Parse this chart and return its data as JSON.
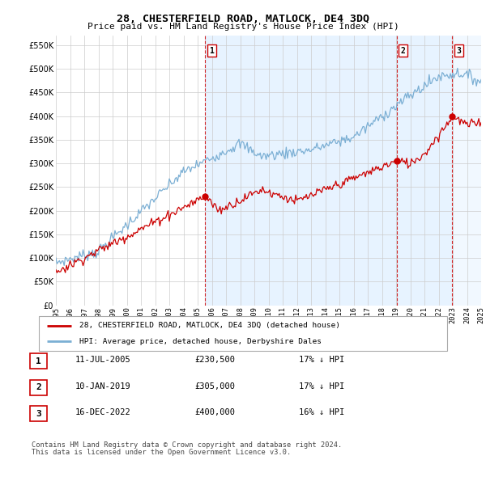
{
  "title": "28, CHESTERFIELD ROAD, MATLOCK, DE4 3DQ",
  "subtitle": "Price paid vs. HM Land Registry's House Price Index (HPI)",
  "ytick_values": [
    0,
    50000,
    100000,
    150000,
    200000,
    250000,
    300000,
    350000,
    400000,
    450000,
    500000,
    550000
  ],
  "ylim": [
    0,
    570000
  ],
  "x_start_year": 1995,
  "x_end_year": 2025,
  "purchases": [
    {
      "date_num": 2005.53,
      "price": 230500,
      "label": "1"
    },
    {
      "date_num": 2019.03,
      "price": 305000,
      "label": "2"
    },
    {
      "date_num": 2022.96,
      "price": 400000,
      "label": "3"
    }
  ],
  "legend_red_label": "28, CHESTERFIELD ROAD, MATLOCK, DE4 3DQ (detached house)",
  "legend_blue_label": "HPI: Average price, detached house, Derbyshire Dales",
  "table_rows": [
    {
      "num": "1",
      "date": "11-JUL-2005",
      "price": "£230,500",
      "pct": "17% ↓ HPI"
    },
    {
      "num": "2",
      "date": "10-JAN-2019",
      "price": "£305,000",
      "pct": "17% ↓ HPI"
    },
    {
      "num": "3",
      "date": "16-DEC-2022",
      "price": "£400,000",
      "pct": "16% ↓ HPI"
    }
  ],
  "footnote1": "Contains HM Land Registry data © Crown copyright and database right 2024.",
  "footnote2": "This data is licensed under the Open Government Licence v3.0.",
  "red_color": "#cc0000",
  "blue_color": "#7bafd4",
  "shade_color": "#ddeeff",
  "dashed_color": "#cc0000",
  "grid_color": "#cccccc",
  "label_box_color": "#cc0000"
}
